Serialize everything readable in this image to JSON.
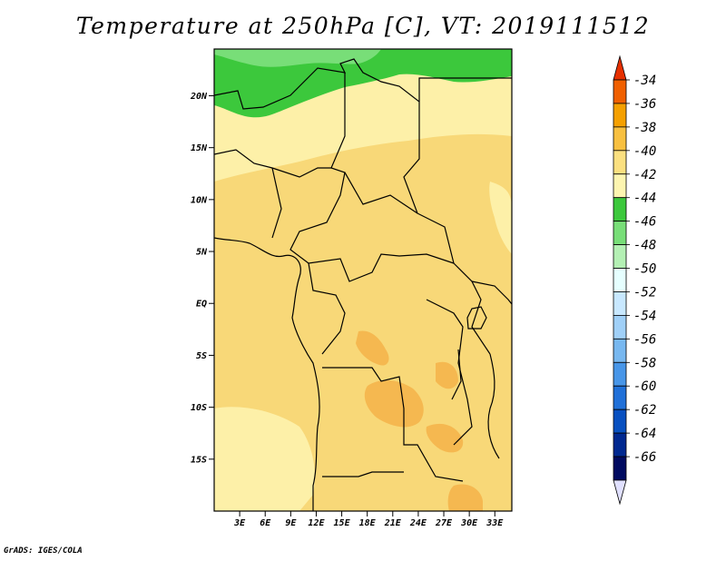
{
  "title": "Temperature at 250hPa [C], VT: 2019111512",
  "credit": "GrADS: IGES/COLA",
  "map": {
    "lat_ticks": [
      "20N",
      "15N",
      "10N",
      "5N",
      "EQ",
      "5S",
      "10S",
      "15S"
    ],
    "lon_ticks": [
      "3E",
      "6E",
      "9E",
      "12E",
      "15E",
      "18E",
      "21E",
      "24E",
      "27E",
      "30E",
      "33E"
    ],
    "lon_range": [
      0,
      35
    ],
    "lat_range": [
      -20,
      24.5
    ]
  },
  "colorbar": {
    "labels": [
      "-34",
      "-36",
      "-38",
      "-40",
      "-42",
      "-44",
      "-46",
      "-48",
      "-50",
      "-52",
      "-54",
      "-56",
      "-58",
      "-60",
      "-62",
      "-64",
      "-66"
    ],
    "colors": [
      "#e63000",
      "#f06000",
      "#f5a000",
      "#f8c040",
      "#fbe080",
      "#fdf5b0",
      "#3cc83c",
      "#78de78",
      "#b4f0b4",
      "#e6ffff",
      "#c8e8ff",
      "#a0d0f8",
      "#78b8f0",
      "#4896e8",
      "#2070d8",
      "#0850c0",
      "#002890",
      "#000a60",
      "#e0e0ff"
    ]
  }
}
